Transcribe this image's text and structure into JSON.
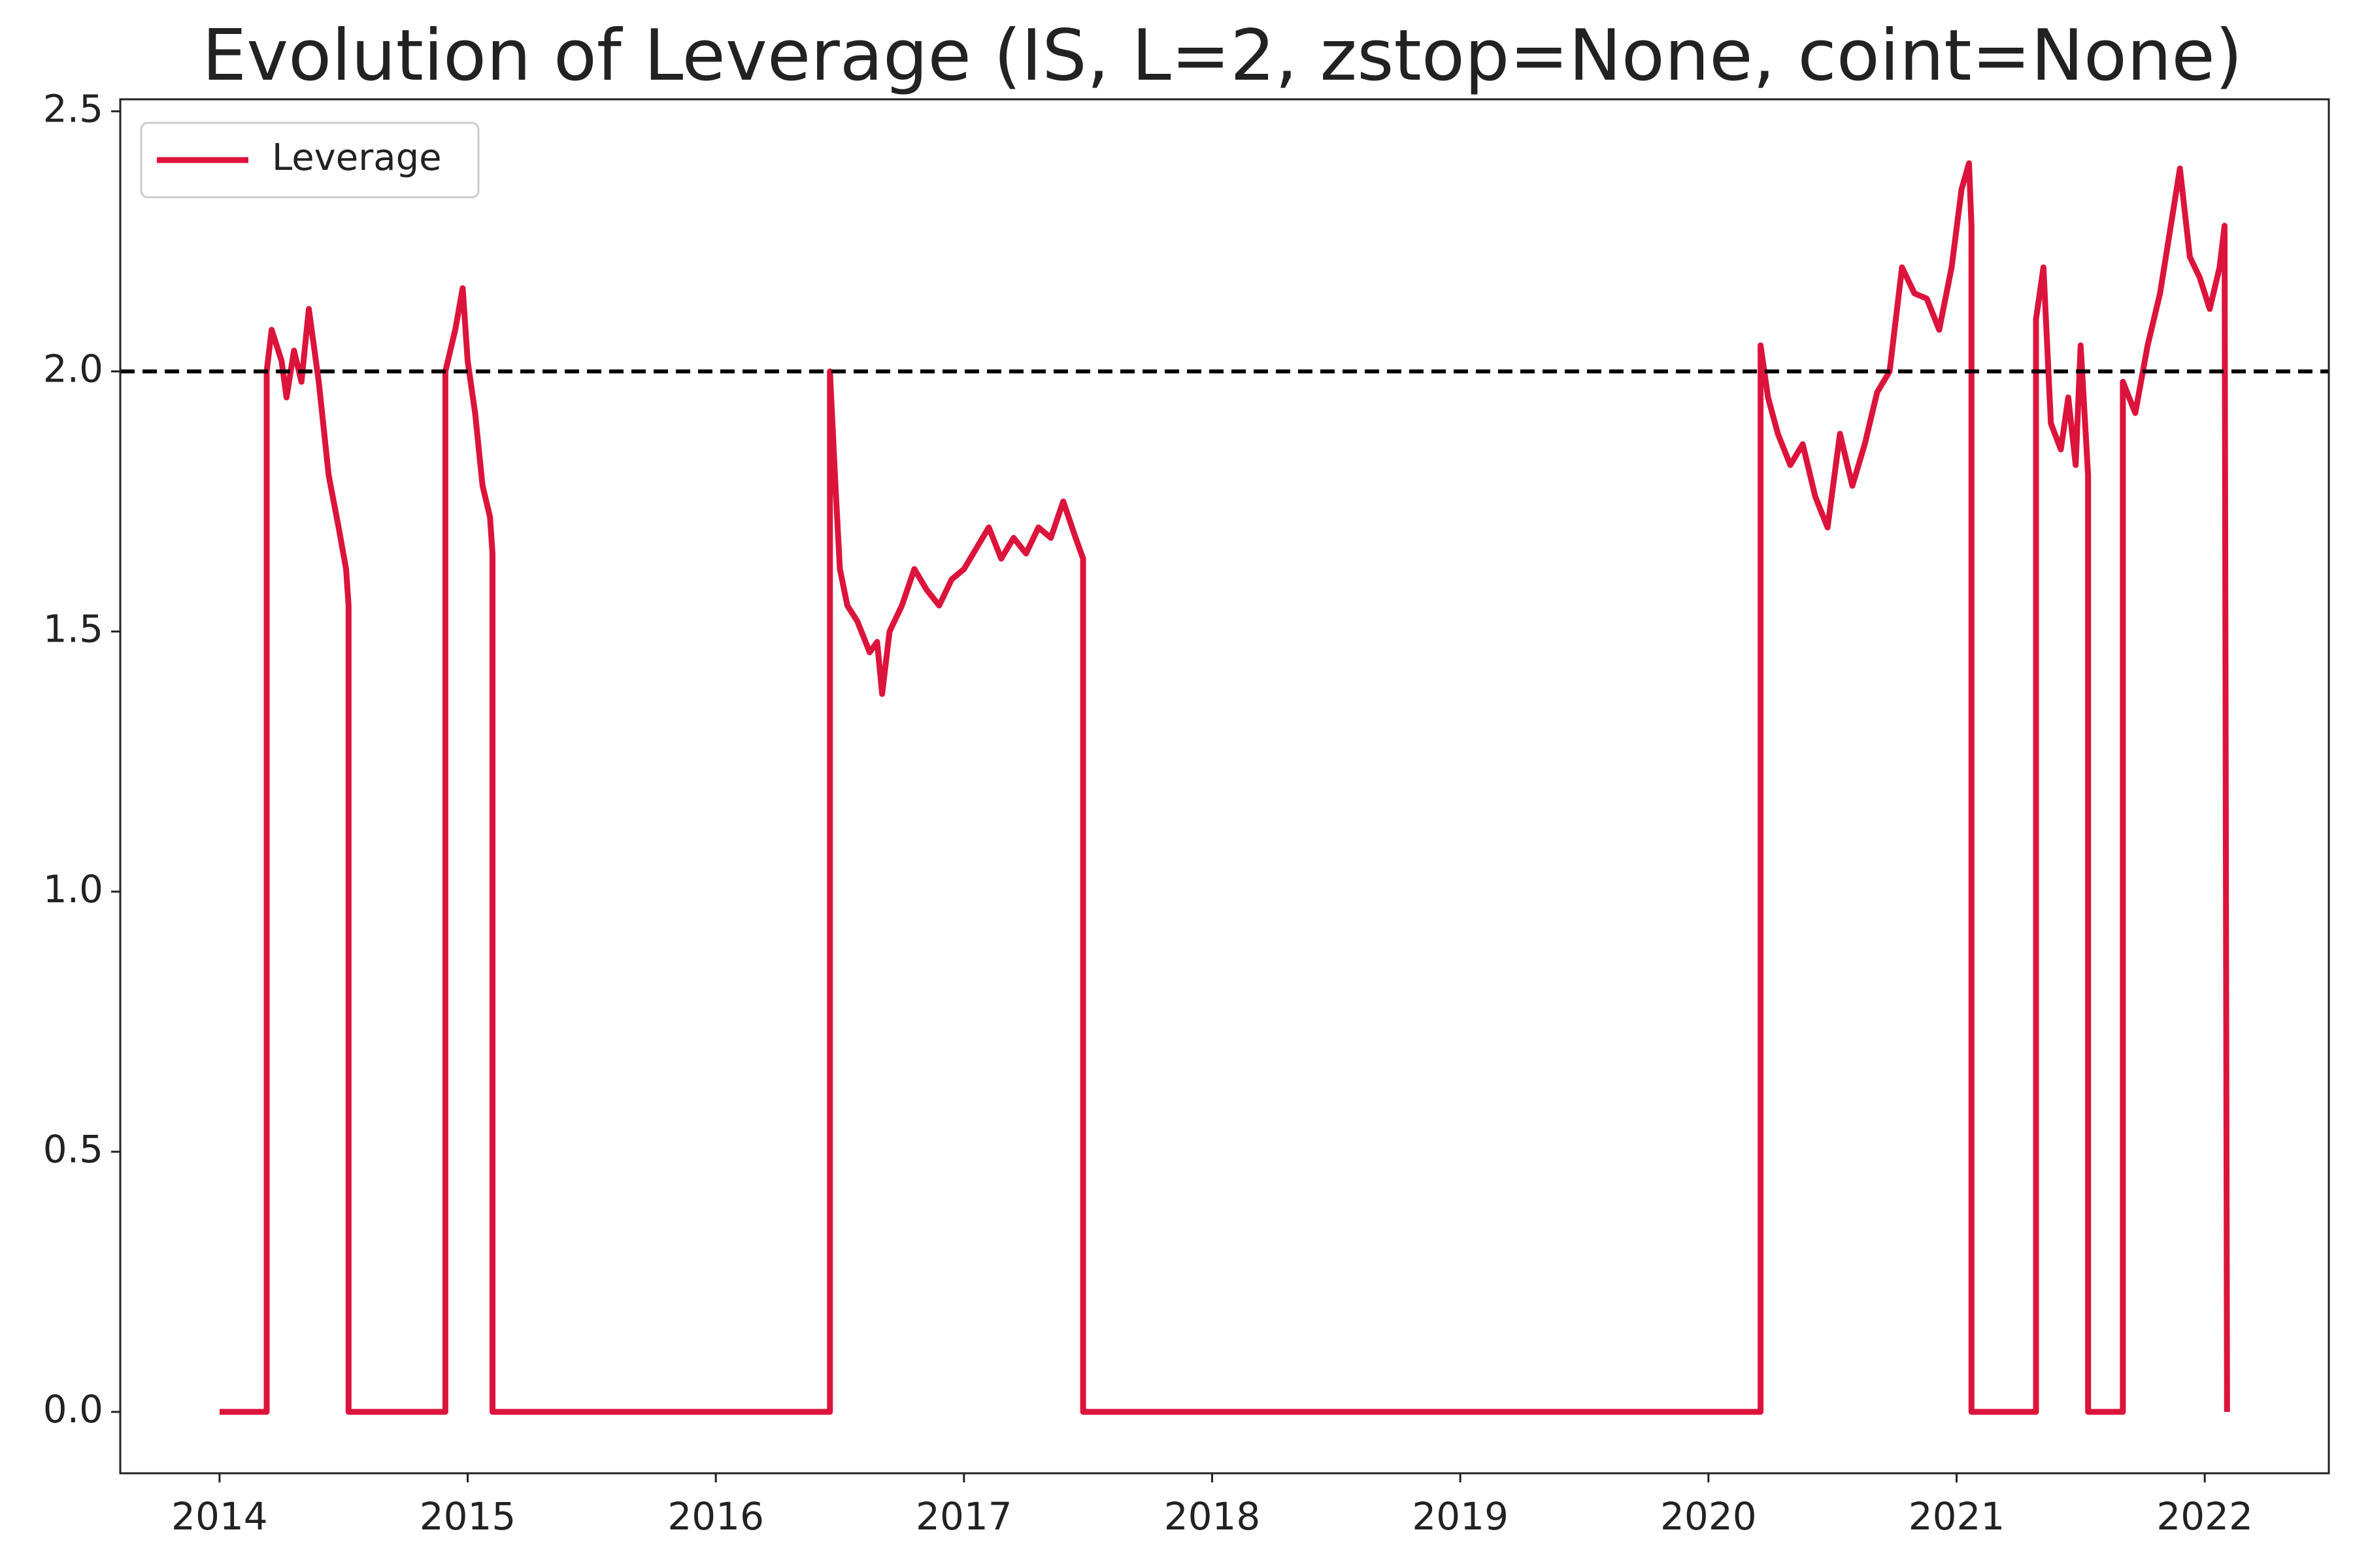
{
  "chart_data": {
    "type": "line",
    "title": "Evolution of Leverage (IS, L=2, zstop=None, coint=None)",
    "x": [
      2014.0,
      2014.19,
      2014.19,
      2014.21,
      2014.25,
      2014.27,
      2014.3,
      2014.33,
      2014.36,
      2014.4,
      2014.44,
      2014.48,
      2014.51,
      2014.52,
      2014.52,
      2014.91,
      2014.91,
      2014.95,
      2014.98,
      2015.0,
      2015.03,
      2015.06,
      2015.09,
      2015.1,
      2015.1,
      2016.46,
      2016.46,
      2016.48,
      2016.5,
      2016.53,
      2016.57,
      2016.62,
      2016.65,
      2016.67,
      2016.7,
      2016.75,
      2016.8,
      2016.85,
      2016.9,
      2016.95,
      2017.0,
      2017.05,
      2017.1,
      2017.15,
      2017.2,
      2017.25,
      2017.3,
      2017.35,
      2017.4,
      2017.45,
      2017.48,
      2017.48,
      2020.21,
      2020.21,
      2020.24,
      2020.28,
      2020.33,
      2020.38,
      2020.43,
      2020.48,
      2020.53,
      2020.58,
      2020.63,
      2020.68,
      2020.73,
      2020.78,
      2020.83,
      2020.88,
      2020.93,
      2020.98,
      2021.02,
      2021.05,
      2021.06,
      2021.06,
      2021.32,
      2021.32,
      2021.35,
      2021.38,
      2021.42,
      2021.45,
      2021.48,
      2021.5,
      2021.53,
      2021.53,
      2021.67,
      2021.67,
      2021.72,
      2021.77,
      2021.82,
      2021.87,
      2021.9,
      2021.94,
      2021.98,
      2022.02,
      2022.06,
      2022.08,
      2022.09
    ],
    "series": [
      {
        "name": "Leverage",
        "color": "#dc143c",
        "values": [
          0,
          0,
          2.0,
          2.08,
          2.02,
          1.95,
          2.04,
          1.98,
          2.12,
          1.98,
          1.8,
          1.7,
          1.62,
          1.55,
          0,
          0,
          2.0,
          2.08,
          2.16,
          2.02,
          1.92,
          1.78,
          1.72,
          1.65,
          0,
          0,
          2.0,
          1.8,
          1.62,
          1.55,
          1.52,
          1.46,
          1.48,
          1.38,
          1.5,
          1.55,
          1.62,
          1.58,
          1.55,
          1.6,
          1.62,
          1.66,
          1.7,
          1.64,
          1.68,
          1.65,
          1.7,
          1.68,
          1.75,
          1.68,
          1.64,
          0,
          0,
          2.05,
          1.95,
          1.88,
          1.82,
          1.86,
          1.76,
          1.7,
          1.88,
          1.78,
          1.86,
          1.96,
          2.0,
          2.2,
          2.15,
          2.14,
          2.08,
          2.2,
          2.35,
          2.4,
          2.28,
          0,
          0,
          2.1,
          2.2,
          1.9,
          1.85,
          1.95,
          1.82,
          2.05,
          1.8,
          0,
          0,
          1.98,
          1.92,
          2.05,
          2.15,
          2.3,
          2.39,
          2.22,
          2.18,
          2.12,
          2.2,
          2.28,
          0
        ]
      }
    ],
    "reference_line": {
      "value": 2,
      "color": "#000000",
      "style": "dashed"
    },
    "xlim": [
      2013.6,
      2022.5
    ],
    "xticks": [
      2014,
      2015,
      2016,
      2017,
      2018,
      2019,
      2020,
      2021,
      2022
    ],
    "ylim": [
      -0.118,
      2.523
    ],
    "yticks": [
      {
        "value": 0,
        "label": "0.0"
      },
      0.5,
      {
        "value": 1,
        "label": "1.0"
      },
      1.5,
      {
        "value": 2,
        "label": "2.0"
      },
      2.5
    ],
    "grid": false,
    "legend": "upper left"
  }
}
